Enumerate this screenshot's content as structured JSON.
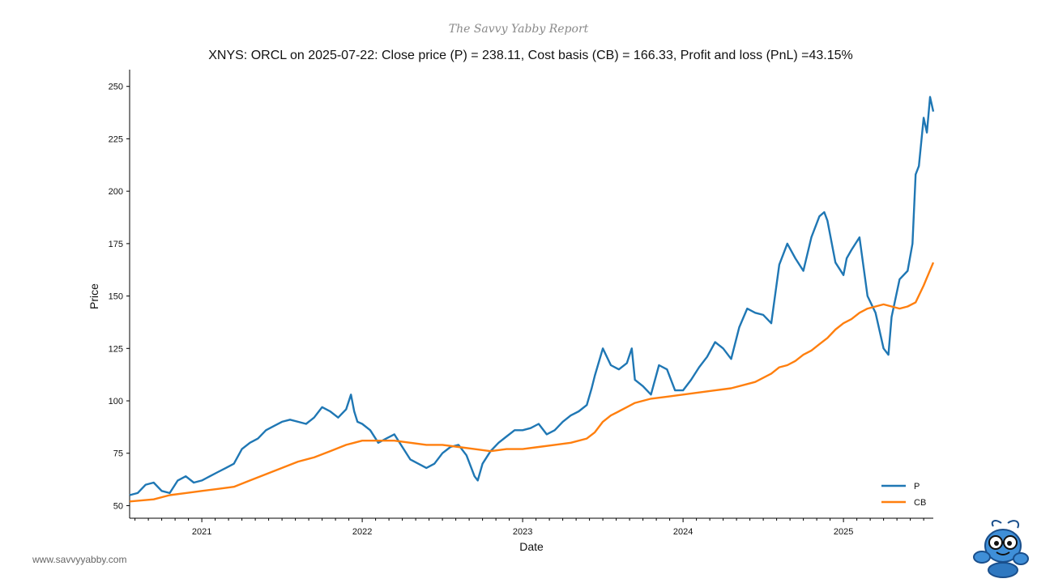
{
  "report_title": "The Savvy Yabby Report",
  "website": "www.savvyyabby.com",
  "chart_data": {
    "type": "line",
    "title": "XNYS: ORCL on 2025-07-22: Close price (P) = 238.11, Cost basis (CB) = 166.33, Profit and loss (PnL) =43.15%",
    "xlabel": "Date",
    "ylabel": "Price",
    "xlim": [
      2020.55,
      2025.56
    ],
    "ylim": [
      44,
      258
    ],
    "yticks": [
      50,
      75,
      100,
      125,
      150,
      175,
      200,
      225,
      250
    ],
    "xticks": [
      {
        "label": "2021",
        "x": 2021.0
      },
      {
        "label": "2022",
        "x": 2022.0
      },
      {
        "label": "2023",
        "x": 2023.0
      },
      {
        "label": "2024",
        "x": 2024.0
      },
      {
        "label": "2025",
        "x": 2025.0
      }
    ],
    "legend_position": "bottom-right",
    "series": [
      {
        "name": "P",
        "color": "#1f77b4",
        "x": [
          2020.55,
          2020.6,
          2020.65,
          2020.7,
          2020.75,
          2020.8,
          2020.85,
          2020.9,
          2020.95,
          2021.0,
          2021.05,
          2021.1,
          2021.15,
          2021.2,
          2021.25,
          2021.3,
          2021.35,
          2021.4,
          2021.45,
          2021.5,
          2021.55,
          2021.6,
          2021.65,
          2021.7,
          2021.75,
          2021.8,
          2021.85,
          2021.9,
          2021.93,
          2021.95,
          2021.97,
          2022.0,
          2022.05,
          2022.1,
          2022.15,
          2022.2,
          2022.25,
          2022.3,
          2022.35,
          2022.4,
          2022.45,
          2022.5,
          2022.55,
          2022.6,
          2022.65,
          2022.7,
          2022.72,
          2022.75,
          2022.8,
          2022.85,
          2022.9,
          2022.95,
          2023.0,
          2023.05,
          2023.1,
          2023.15,
          2023.2,
          2023.25,
          2023.3,
          2023.35,
          2023.4,
          2023.43,
          2023.45,
          2023.5,
          2023.55,
          2023.6,
          2023.65,
          2023.68,
          2023.7,
          2023.75,
          2023.8,
          2023.85,
          2023.9,
          2023.95,
          2024.0,
          2024.05,
          2024.1,
          2024.15,
          2024.2,
          2024.25,
          2024.3,
          2024.35,
          2024.4,
          2024.45,
          2024.5,
          2024.55,
          2024.6,
          2024.65,
          2024.7,
          2024.75,
          2024.8,
          2024.85,
          2024.88,
          2024.9,
          2024.95,
          2025.0,
          2025.02,
          2025.05,
          2025.1,
          2025.15,
          2025.2,
          2025.25,
          2025.28,
          2025.3,
          2025.35,
          2025.4,
          2025.43,
          2025.45,
          2025.47,
          2025.5,
          2025.52,
          2025.54,
          2025.56
        ],
        "values": [
          55,
          56,
          60,
          61,
          57,
          56,
          62,
          64,
          61,
          62,
          64,
          66,
          68,
          70,
          77,
          80,
          82,
          86,
          88,
          90,
          91,
          90,
          89,
          92,
          97,
          95,
          92,
          96,
          103,
          95,
          90,
          89,
          86,
          80,
          82,
          84,
          78,
          72,
          70,
          68,
          70,
          75,
          78,
          79,
          74,
          64,
          62,
          70,
          76,
          80,
          83,
          86,
          86,
          87,
          89,
          84,
          86,
          90,
          93,
          95,
          98,
          106,
          112,
          125,
          117,
          115,
          118,
          125,
          110,
          107,
          103,
          117,
          115,
          105,
          105,
          110,
          116,
          121,
          128,
          125,
          120,
          135,
          144,
          142,
          141,
          137,
          165,
          175,
          168,
          162,
          178,
          188,
          190,
          186,
          166,
          160,
          168,
          172,
          178,
          150,
          142,
          125,
          122,
          140,
          158,
          162,
          175,
          208,
          212,
          235,
          228,
          245,
          238
        ]
      },
      {
        "name": "CB",
        "color": "#ff7f0e",
        "x": [
          2020.55,
          2020.7,
          2020.8,
          2020.9,
          2021.0,
          2021.1,
          2021.2,
          2021.3,
          2021.4,
          2021.5,
          2021.6,
          2021.7,
          2021.8,
          2021.9,
          2021.95,
          2022.0,
          2022.1,
          2022.2,
          2022.3,
          2022.4,
          2022.5,
          2022.6,
          2022.7,
          2022.8,
          2022.9,
          2023.0,
          2023.1,
          2023.2,
          2023.3,
          2023.4,
          2023.45,
          2023.5,
          2023.55,
          2023.6,
          2023.65,
          2023.7,
          2023.8,
          2023.9,
          2024.0,
          2024.1,
          2024.2,
          2024.3,
          2024.4,
          2024.45,
          2024.5,
          2024.55,
          2024.6,
          2024.65,
          2024.7,
          2024.75,
          2024.8,
          2024.85,
          2024.9,
          2024.95,
          2025.0,
          2025.05,
          2025.1,
          2025.15,
          2025.2,
          2025.25,
          2025.3,
          2025.35,
          2025.4,
          2025.45,
          2025.5,
          2025.56
        ],
        "values": [
          52,
          53,
          55,
          56,
          57,
          58,
          59,
          62,
          65,
          68,
          71,
          73,
          76,
          79,
          80,
          81,
          81,
          81,
          80,
          79,
          79,
          78,
          77,
          76,
          77,
          77,
          78,
          79,
          80,
          82,
          85,
          90,
          93,
          95,
          97,
          99,
          101,
          102,
          103,
          104,
          105,
          106,
          108,
          109,
          111,
          113,
          116,
          117,
          119,
          122,
          124,
          127,
          130,
          134,
          137,
          139,
          142,
          144,
          145,
          146,
          145,
          144,
          145,
          147,
          155,
          166
        ]
      }
    ]
  }
}
